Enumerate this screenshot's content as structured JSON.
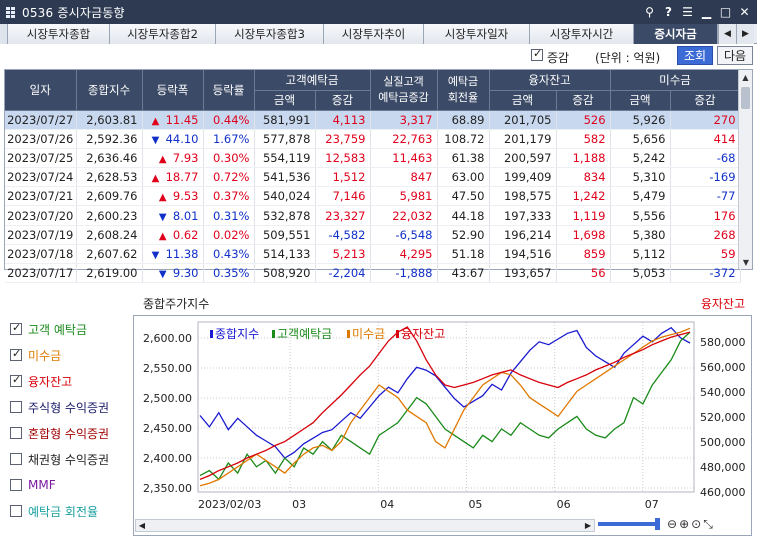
{
  "window": {
    "title": "0536 증시자금동향"
  },
  "tabs": [
    {
      "label": "시장투자종합",
      "active": false
    },
    {
      "label": "시장투자종합2",
      "active": false
    },
    {
      "label": "시장투자종합3",
      "active": false
    },
    {
      "label": "시장투자추이",
      "active": false
    },
    {
      "label": "시장투자일자",
      "active": false
    },
    {
      "label": "시장투자시간",
      "active": false
    },
    {
      "label": "증시자금",
      "active": true
    }
  ],
  "options": {
    "change_checkbox_label": "증감",
    "change_checked": true,
    "unit_label": "(단위 : 억원)",
    "query_button": "조회",
    "next_button": "다음"
  },
  "table": {
    "headers": {
      "date": "일자",
      "index": "종합지수",
      "change": "등락폭",
      "rate": "등락률",
      "deposit_group": "고객예탁금",
      "real_deposit": "실질고객\n예탁금증감",
      "turnover": "예탁금\n회전율",
      "margin_group": "융자잔고",
      "unpaid_group": "미수금",
      "amount": "금액",
      "delta": "증감"
    },
    "rows": [
      {
        "date": "2023/07/27",
        "index": "2,603.81",
        "dir": "up",
        "change": "11.45",
        "rate": "0.44%",
        "dep_amt": "581,991",
        "dep_chg": "4,113",
        "real_chg": "3,317",
        "turnover": "68.89",
        "margin_amt": "201,705",
        "margin_chg": "526",
        "unpaid_amt": "5,926",
        "unpaid_chg": "270"
      },
      {
        "date": "2023/07/26",
        "index": "2,592.36",
        "dir": "down",
        "change": "44.10",
        "rate": "1.67%",
        "dep_amt": "577,878",
        "dep_chg": "23,759",
        "real_chg": "22,763",
        "turnover": "108.72",
        "margin_amt": "201,179",
        "margin_chg": "582",
        "unpaid_amt": "5,656",
        "unpaid_chg": "414"
      },
      {
        "date": "2023/07/25",
        "index": "2,636.46",
        "dir": "up",
        "change": "7.93",
        "rate": "0.30%",
        "dep_amt": "554,119",
        "dep_chg": "12,583",
        "real_chg": "11,463",
        "turnover": "61.38",
        "margin_amt": "200,597",
        "margin_chg": "1,188",
        "unpaid_amt": "5,242",
        "unpaid_chg": "-68"
      },
      {
        "date": "2023/07/24",
        "index": "2,628.53",
        "dir": "up",
        "change": "18.77",
        "rate": "0.72%",
        "dep_amt": "541,536",
        "dep_chg": "1,512",
        "real_chg": "847",
        "turnover": "63.00",
        "margin_amt": "199,409",
        "margin_chg": "834",
        "unpaid_amt": "5,310",
        "unpaid_chg": "-169"
      },
      {
        "date": "2023/07/21",
        "index": "2,609.76",
        "dir": "up",
        "change": "9.53",
        "rate": "0.37%",
        "dep_amt": "540,024",
        "dep_chg": "7,146",
        "real_chg": "5,981",
        "turnover": "47.50",
        "margin_amt": "198,575",
        "margin_chg": "1,242",
        "unpaid_amt": "5,479",
        "unpaid_chg": "-77"
      },
      {
        "date": "2023/07/20",
        "index": "2,600.23",
        "dir": "down",
        "change": "8.01",
        "rate": "0.31%",
        "dep_amt": "532,878",
        "dep_chg": "23,327",
        "real_chg": "22,032",
        "turnover": "44.18",
        "margin_amt": "197,333",
        "margin_chg": "1,119",
        "unpaid_amt": "5,556",
        "unpaid_chg": "176"
      },
      {
        "date": "2023/07/19",
        "index": "2,608.24",
        "dir": "up",
        "change": "0.62",
        "rate": "0.02%",
        "dep_amt": "509,551",
        "dep_chg": "-4,582",
        "real_chg": "-6,548",
        "turnover": "52.90",
        "margin_amt": "196,214",
        "margin_chg": "1,698",
        "unpaid_amt": "5,380",
        "unpaid_chg": "268"
      },
      {
        "date": "2023/07/18",
        "index": "2,607.62",
        "dir": "down",
        "change": "11.38",
        "rate": "0.43%",
        "dep_amt": "514,133",
        "dep_chg": "5,213",
        "real_chg": "4,295",
        "turnover": "51.18",
        "margin_amt": "194,516",
        "margin_chg": "859",
        "unpaid_amt": "5,112",
        "unpaid_chg": "59"
      },
      {
        "date": "2023/07/17",
        "index": "2,619.00",
        "dir": "down",
        "change": "9.30",
        "rate": "0.35%",
        "dep_amt": "508,920",
        "dep_chg": "-2,204",
        "real_chg": "-1,888",
        "turnover": "43.67",
        "margin_amt": "193,657",
        "margin_chg": "56",
        "unpaid_amt": "5,053",
        "unpaid_chg": "-372"
      }
    ]
  },
  "series_toggles": [
    {
      "label": "고객 예탁금",
      "checked": true,
      "color": "#1a8a1a"
    },
    {
      "label": "미수금",
      "checked": true,
      "color": "#e07800"
    },
    {
      "label": "융자잔고",
      "checked": true,
      "color": "#d8000a"
    },
    {
      "label": "주식형 수익증권",
      "checked": false,
      "color": "#1a1a6a"
    },
    {
      "label": "혼합형 수익증권",
      "checked": false,
      "color": "#a00000"
    },
    {
      "label": "채권형 수익증권",
      "checked": false,
      "color": "#222222"
    },
    {
      "label": "MMF",
      "checked": false,
      "color": "#7a1aa0"
    },
    {
      "label": "예탁금 회전율",
      "checked": false,
      "color": "#1aa0a0"
    }
  ],
  "chart_panel": {
    "left_title": "종합주가지수",
    "right_title": "융자잔고"
  },
  "chart_data": {
    "type": "line",
    "legend": [
      "종합지수",
      "고객예탁금",
      "미수금",
      "융자잔고"
    ],
    "legend_placement": "top-left",
    "colors": {
      "종합지수": "#1a1ad0",
      "고객예탁금": "#1a8a1a",
      "미수금": "#e07800",
      "융자잔고": "#d8000a"
    },
    "x_ticks": [
      "2023/02/03",
      "03",
      "04",
      "05",
      "06",
      "07"
    ],
    "y_left_ticks": [
      "2,350.00",
      "2,400.00",
      "2,450.00",
      "2,500.00",
      "2,550.00",
      "2,600.00"
    ],
    "y_left_range": [
      2340,
      2640
    ],
    "y_right_ticks": [
      "460,000",
      "480,000",
      "500,000",
      "520,000",
      "540,000",
      "560,000",
      "580,000"
    ],
    "y_right_range": [
      455000,
      590000
    ],
    "grid": true,
    "series": [
      {
        "name": "종합지수",
        "axis": "left",
        "values": [
          2475,
          2455,
          2480,
          2450,
          2470,
          2455,
          2440,
          2430,
          2420,
          2400,
          2410,
          2425,
          2435,
          2445,
          2450,
          2465,
          2480,
          2470,
          2490,
          2510,
          2525,
          2515,
          2540,
          2560,
          2555,
          2545,
          2525,
          2505,
          2490,
          2500,
          2510,
          2530,
          2520,
          2550,
          2570,
          2590,
          2605,
          2600,
          2610,
          2620,
          2625,
          2595,
          2580,
          2570,
          2560,
          2585,
          2600,
          2615,
          2605,
          2620,
          2630,
          2612,
          2603
        ]
      },
      {
        "name": "고객예탁금",
        "axis": "right",
        "values": [
          468,
          472,
          465,
          478,
          470,
          485,
          475,
          480,
          470,
          482,
          475,
          490,
          485,
          495,
          488,
          500,
          495,
          490,
          485,
          500,
          505,
          510,
          520,
          530,
          525,
          515,
          505,
          500,
          495,
          490,
          500,
          495,
          505,
          500,
          510,
          505,
          500,
          498,
          505,
          510,
          515,
          505,
          500,
          498,
          505,
          510,
          530,
          525,
          540,
          550,
          560,
          575,
          582
        ]
      },
      {
        "name": "미수금",
        "axis": "right",
        "values": [
          460,
          462,
          465,
          470,
          475,
          480,
          485,
          480,
          475,
          470,
          478,
          485,
          490,
          492,
          488,
          495,
          510,
          520,
          530,
          540,
          535,
          530,
          520,
          515,
          510,
          495,
          490,
          505,
          520,
          530,
          540,
          545,
          550,
          548,
          540,
          530,
          525,
          520,
          515,
          525,
          535,
          540,
          545,
          550,
          555,
          560,
          565,
          570,
          575,
          578,
          580,
          582,
          585
        ]
      },
      {
        "name": "융자잔고",
        "axis": "right",
        "values": [
          465,
          468,
          472,
          475,
          478,
          482,
          485,
          488,
          492,
          495,
          500,
          505,
          510,
          518,
          525,
          532,
          540,
          548,
          555,
          565,
          575,
          582,
          586,
          575,
          560,
          548,
          540,
          538,
          540,
          542,
          545,
          548,
          550,
          552,
          548,
          545,
          542,
          540,
          538,
          542,
          545,
          548,
          552,
          555,
          558,
          562,
          565,
          568,
          572,
          575,
          578,
          580,
          582
        ]
      }
    ]
  },
  "zoom": {
    "icons": [
      "zoom-out",
      "zoom-in",
      "zoom-reset",
      "zoom-fit"
    ]
  }
}
